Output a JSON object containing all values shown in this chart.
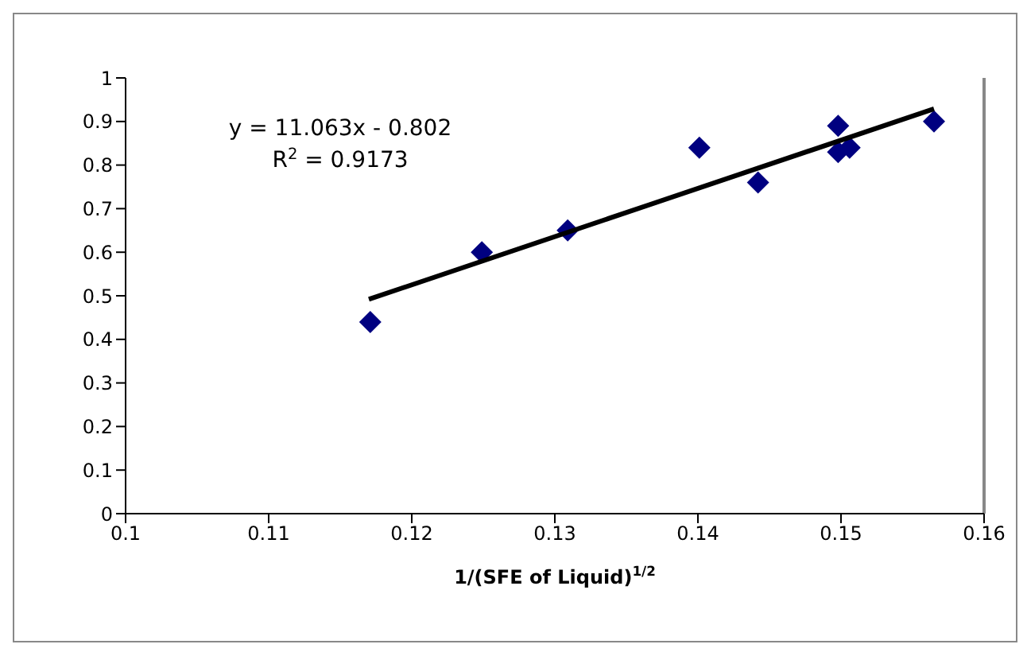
{
  "chart_data": {
    "type": "scatter",
    "xlabel": "1/(SFE of Liquid)$^{1/2}$",
    "marker": "diamond",
    "xlim": [
      0.1,
      0.16
    ],
    "xticks": [
      0.1,
      0.11,
      0.12,
      0.13,
      0.14,
      0.15,
      0.16
    ],
    "ylim": [
      0,
      1
    ],
    "yticks": [
      0,
      0.1,
      0.2,
      0.3,
      0.4,
      0.5,
      0.6,
      0.7,
      0.8,
      0.9,
      1
    ],
    "annotations": [
      "y = 11.063x - 0.802",
      "R$^{2}$ = 0.9173"
    ],
    "series": [
      {
        "color": "#000080",
        "x": [
          0.1171,
          0.1249,
          0.1309,
          0.1401,
          0.1442,
          0.1498,
          0.1498,
          0.1506,
          0.1565
        ],
        "values": [
          0.44,
          0.6,
          0.65,
          0.84,
          0.76,
          0.89,
          0.83,
          0.84,
          0.9
        ]
      },
      {
        "type": "line",
        "marker": "none",
        "color": "#000000",
        "x": [
          0.117,
          0.1565
        ],
        "values": [
          0.492,
          0.929
        ]
      }
    ]
  }
}
